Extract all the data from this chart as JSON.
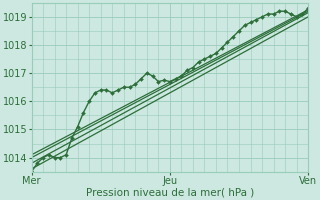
{
  "xlabel": "Pression niveau de la mer( hPa )",
  "background_color": "#cce8e0",
  "grid_color": "#99ccbb",
  "line_color": "#2d6e3a",
  "ylim": [
    1013.5,
    1019.5
  ],
  "xlim": [
    0,
    96
  ],
  "xtick_labels": [
    "Mer",
    "Jeu",
    "Ven"
  ],
  "xtick_positions": [
    0,
    48,
    96
  ],
  "ytick_values": [
    1014,
    1015,
    1016,
    1017,
    1018,
    1019
  ],
  "series": [
    {
      "x": [
        0,
        2,
        4,
        6,
        8,
        10,
        12,
        14,
        16,
        18,
        20,
        22,
        24,
        26,
        28,
        30,
        32,
        34,
        36,
        38,
        40,
        42,
        44,
        46,
        48,
        50,
        52,
        54,
        56,
        58,
        60,
        62,
        64,
        66,
        68,
        70,
        72,
        74,
        76,
        78,
        80,
        82,
        84,
        86,
        88,
        90,
        92,
        94,
        96
      ],
      "y": [
        1013.5,
        1013.8,
        1014.0,
        1014.1,
        1014.0,
        1014.0,
        1014.1,
        1014.7,
        1015.1,
        1015.6,
        1016.0,
        1016.3,
        1016.4,
        1016.4,
        1016.3,
        1016.4,
        1016.5,
        1016.5,
        1016.6,
        1016.8,
        1017.0,
        1016.9,
        1016.7,
        1016.75,
        1016.7,
        1016.8,
        1016.9,
        1017.1,
        1017.2,
        1017.4,
        1017.5,
        1017.6,
        1017.7,
        1017.9,
        1018.1,
        1018.3,
        1018.5,
        1018.7,
        1018.8,
        1018.9,
        1019.0,
        1019.1,
        1019.1,
        1019.2,
        1019.2,
        1019.1,
        1019.0,
        1019.1,
        1019.3
      ],
      "marker": "D",
      "markersize": 2.0,
      "linewidth": 1.0,
      "has_markers": true
    },
    {
      "x": [
        0,
        96
      ],
      "y": [
        1014.0,
        1019.2
      ],
      "marker": null,
      "markersize": 0,
      "linewidth": 0.9,
      "has_markers": false
    },
    {
      "x": [
        0,
        96
      ],
      "y": [
        1014.1,
        1019.25
      ],
      "marker": null,
      "markersize": 0,
      "linewidth": 0.9,
      "has_markers": false
    },
    {
      "x": [
        0,
        96
      ],
      "y": [
        1013.8,
        1019.15
      ],
      "marker": null,
      "markersize": 0,
      "linewidth": 0.9,
      "has_markers": false
    },
    {
      "x": [
        0,
        96
      ],
      "y": [
        1013.6,
        1019.0
      ],
      "marker": null,
      "markersize": 0,
      "linewidth": 0.9,
      "has_markers": false
    }
  ]
}
